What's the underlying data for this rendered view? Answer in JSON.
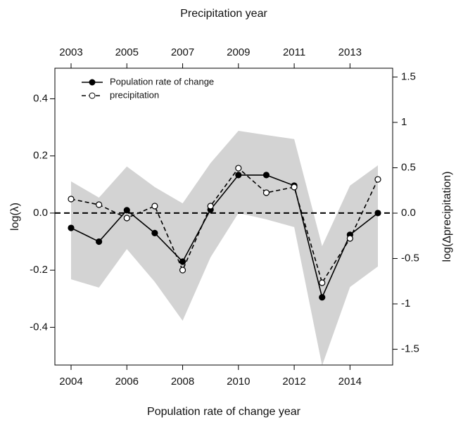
{
  "chart_data": {
    "type": "line",
    "x_title": "Population rate of change year",
    "x2_title": "Precipitation year",
    "y_title": "log(λ)",
    "y2_title": "log(Δprecipitation)",
    "x": [
      2004,
      2005,
      2006,
      2007,
      2008,
      2009,
      2010,
      2011,
      2012,
      2013,
      2014,
      2015
    ],
    "series": [
      {
        "name": "Population rate of change",
        "color": "#000000",
        "marker": "filled",
        "dash": false,
        "values": [
          -0.052,
          -0.1,
          0.01,
          -0.07,
          -0.17,
          0.012,
          0.133,
          0.133,
          0.096,
          -0.295,
          -0.076,
          0.0
        ]
      },
      {
        "name": "precipitation",
        "color": "#000000",
        "marker": "open",
        "dash": true,
        "axis": "y2",
        "values": [
          0.155,
          0.093,
          -0.054,
          0.078,
          -0.628,
          0.078,
          0.496,
          0.225,
          0.287,
          -0.767,
          -0.279,
          0.372
        ]
      }
    ],
    "band": {
      "color": "#d3d3d3",
      "upper": [
        0.111,
        0.054,
        0.163,
        0.091,
        0.034,
        0.175,
        0.288,
        0.273,
        0.259,
        -0.116,
        0.096,
        0.167
      ],
      "lower": [
        -0.232,
        -0.261,
        -0.126,
        -0.241,
        -0.377,
        -0.155,
        0.0,
        -0.022,
        -0.049,
        -0.534,
        -0.259,
        -0.187
      ]
    },
    "reference_line": 0,
    "xlim": [
      2003.42,
      2015.53
    ],
    "xticks": [
      2004,
      2006,
      2008,
      2010,
      2012,
      2014
    ],
    "x2lim": [
      2002.42,
      2014.53
    ],
    "x2ticks": [
      2003,
      2005,
      2007,
      2009,
      2011,
      2013
    ],
    "ylim": [
      -0.532,
      0.507
    ],
    "yticks": [
      -0.4,
      -0.2,
      {
        "value": 0,
        "label": "0.0"
      },
      0.2,
      0.4
    ],
    "y2lim": [
      -1.674,
      1.597
    ],
    "y2ticks": [
      -1.5,
      -1.0,
      -0.5,
      {
        "value": 0,
        "label": "0.0"
      },
      0.5,
      1.0,
      1.5
    ],
    "legend": "top-left"
  }
}
